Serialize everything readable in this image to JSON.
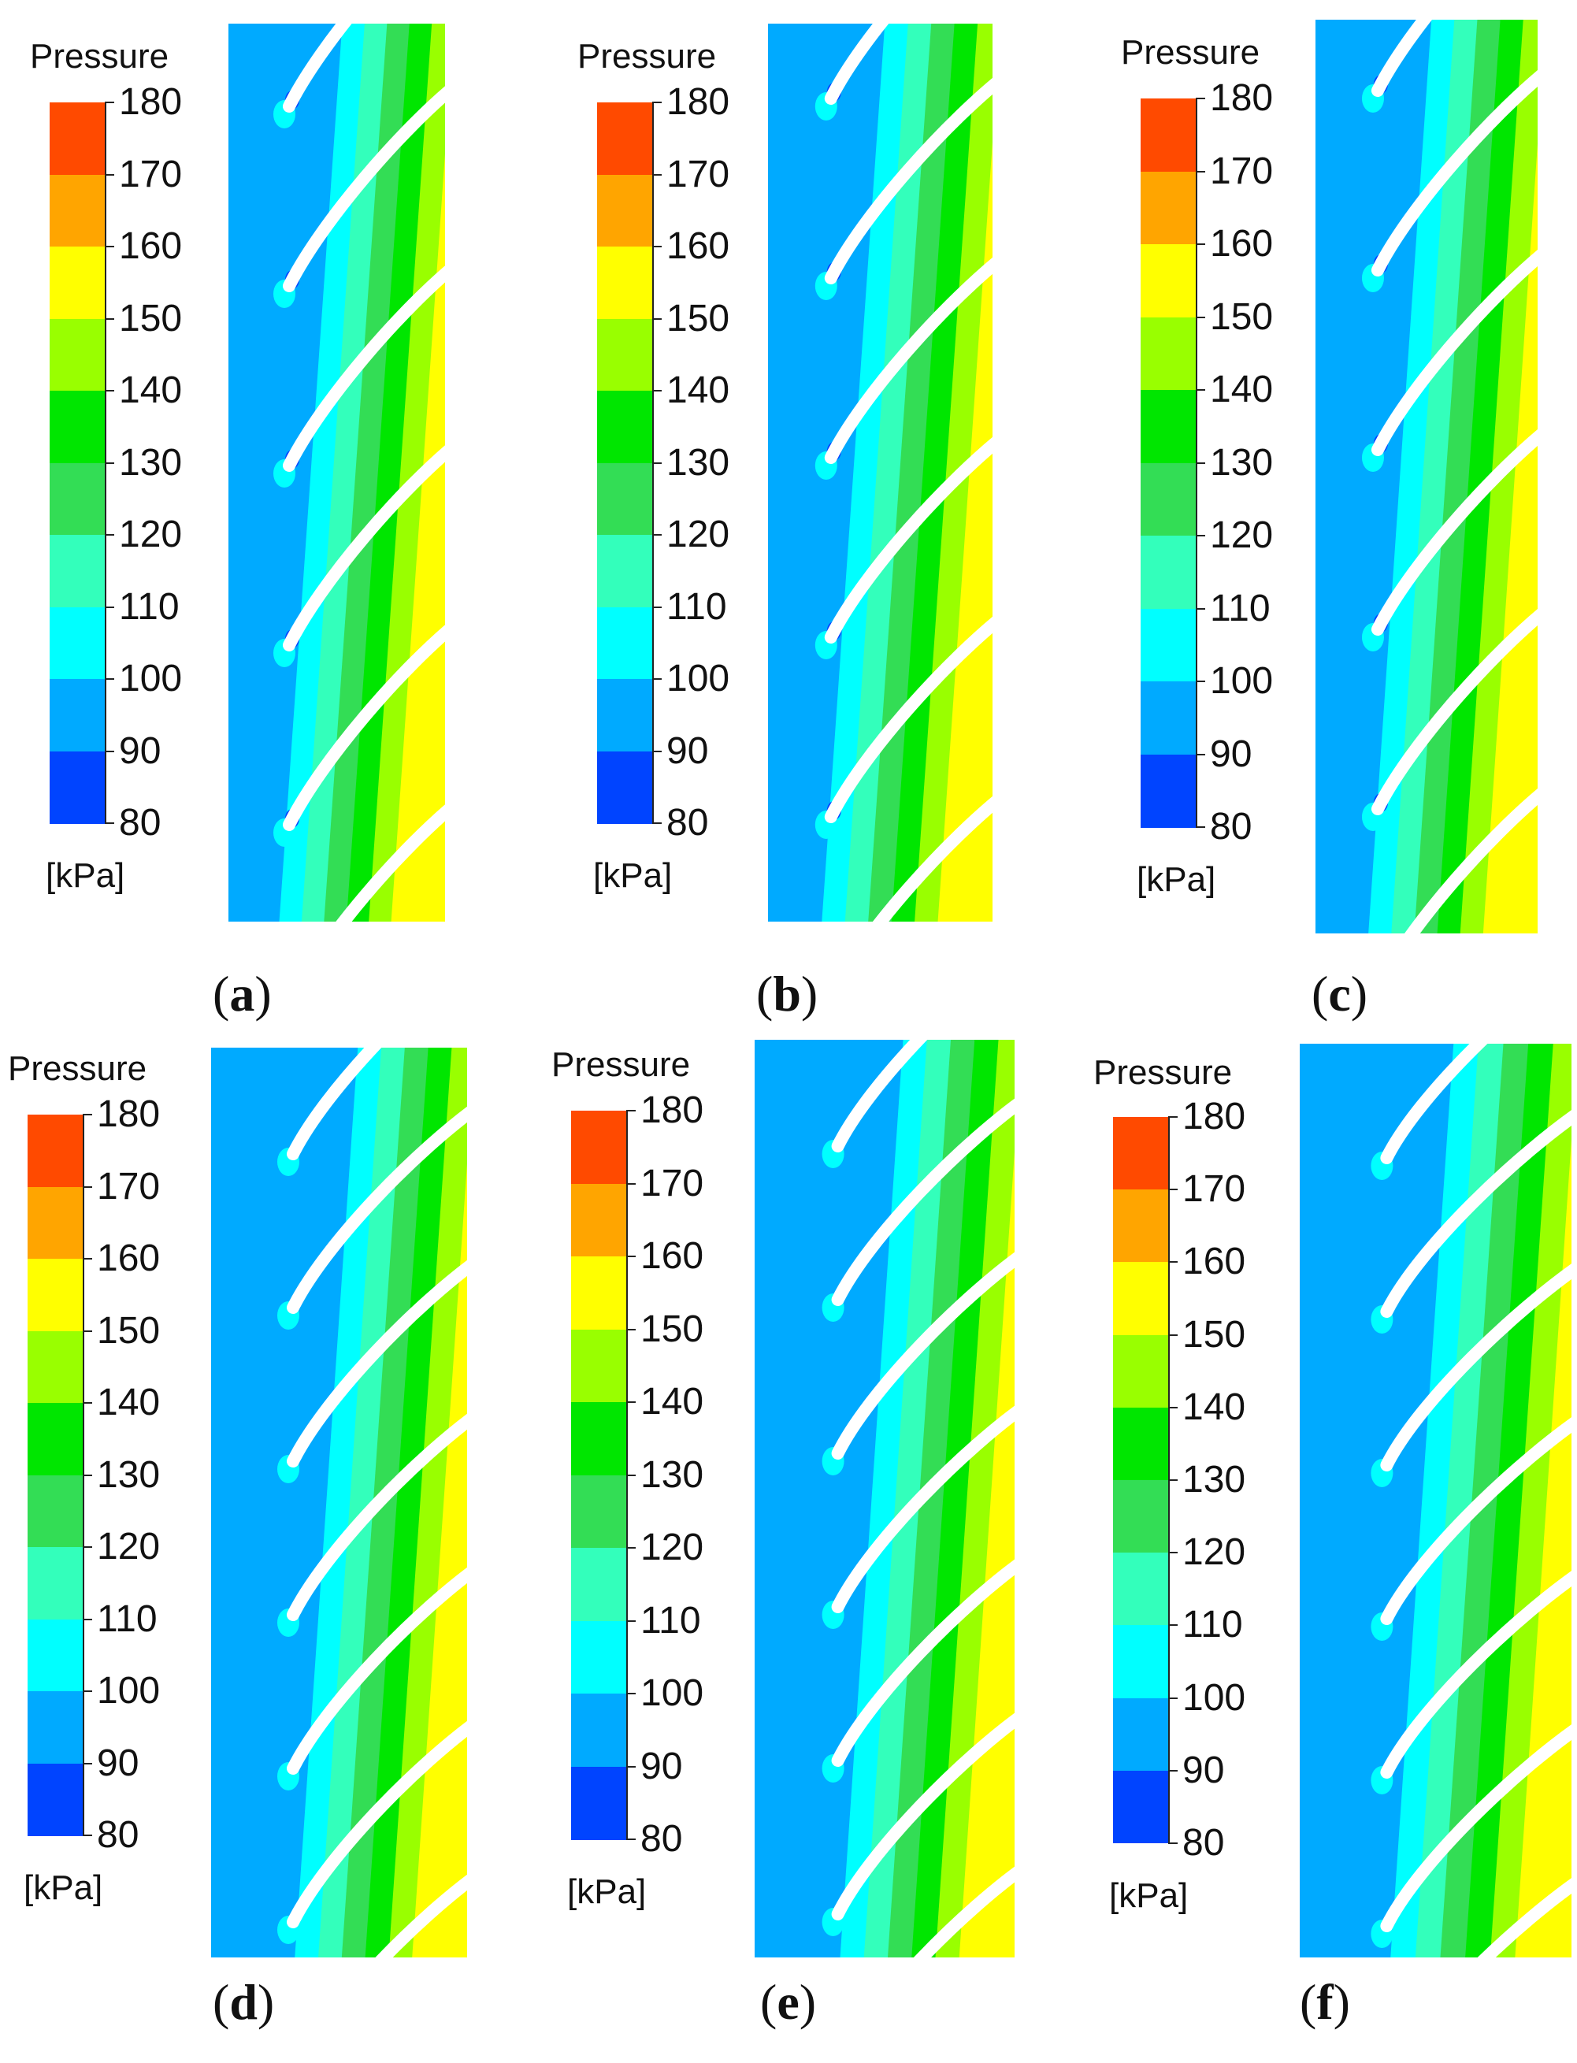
{
  "chart_data": [
    {
      "type": "contour",
      "panel": "(a)",
      "legend": {
        "title": "Pressure",
        "unit": "[kPa]",
        "ticks": [
          180,
          170,
          160,
          150,
          140,
          130,
          120,
          110,
          100,
          90,
          80
        ],
        "colors": [
          "#FF4A00",
          "#FFA500",
          "#FFFF00",
          "#99FF00",
          "#00E600",
          "#33DD55",
          "#33FFBB",
          "#00FFFF",
          "#00AAFF",
          "#0044FF"
        ]
      },
      "blades": 5,
      "field": "static pressure contour around cascade blades"
    },
    {
      "type": "contour",
      "panel": "(b)",
      "legend": {
        "title": "Pressure",
        "unit": "[kPa]",
        "ticks": [
          180,
          170,
          160,
          150,
          140,
          130,
          120,
          110,
          100,
          90,
          80
        ],
        "colors": [
          "#FF4A00",
          "#FFA500",
          "#FFFF00",
          "#99FF00",
          "#00E600",
          "#33DD55",
          "#33FFBB",
          "#00FFFF",
          "#00AAFF",
          "#0044FF"
        ]
      },
      "blades": 5,
      "field": "static pressure contour around cascade blades"
    },
    {
      "type": "contour",
      "panel": "(c)",
      "legend": {
        "title": "Pressure",
        "unit": "[kPa]",
        "ticks": [
          180,
          170,
          160,
          150,
          140,
          130,
          120,
          110,
          100,
          90,
          80
        ],
        "colors": [
          "#FF4A00",
          "#FFA500",
          "#FFFF00",
          "#99FF00",
          "#00E600",
          "#33DD55",
          "#33FFBB",
          "#00FFFF",
          "#00AAFF",
          "#0044FF"
        ]
      },
      "blades": 5,
      "field": "static pressure contour around cascade blades"
    },
    {
      "type": "contour",
      "panel": "(d)",
      "legend": {
        "title": "Pressure",
        "unit": "[kPa]",
        "ticks": [
          180,
          170,
          160,
          150,
          140,
          130,
          120,
          110,
          100,
          90,
          80
        ],
        "colors": [
          "#FF4A00",
          "#FFA500",
          "#FFFF00",
          "#99FF00",
          "#00E600",
          "#33DD55",
          "#33FFBB",
          "#00FFFF",
          "#00AAFF",
          "#0044FF"
        ]
      },
      "blades": 6,
      "field": "static pressure contour around cascade blades"
    },
    {
      "type": "contour",
      "panel": "(e)",
      "legend": {
        "title": "Pressure",
        "unit": "[kPa]",
        "ticks": [
          180,
          170,
          160,
          150,
          140,
          130,
          120,
          110,
          100,
          90,
          80
        ],
        "colors": [
          "#FF4A00",
          "#FFA500",
          "#FFFF00",
          "#99FF00",
          "#00E600",
          "#33DD55",
          "#33FFBB",
          "#00FFFF",
          "#00AAFF",
          "#0044FF"
        ]
      },
      "blades": 6,
      "field": "static pressure contour around cascade blades"
    },
    {
      "type": "contour",
      "panel": "(f)",
      "legend": {
        "title": "Pressure",
        "unit": "[kPa]",
        "ticks": [
          180,
          170,
          160,
          150,
          140,
          130,
          120,
          110,
          100,
          90,
          80
        ],
        "colors": [
          "#FF4A00",
          "#FFA500",
          "#FFFF00",
          "#99FF00",
          "#00E600",
          "#33DD55",
          "#33FFBB",
          "#00FFFF",
          "#00AAFF",
          "#0044FF"
        ]
      },
      "blades": 6,
      "field": "static pressure contour around cascade blades"
    }
  ]
}
